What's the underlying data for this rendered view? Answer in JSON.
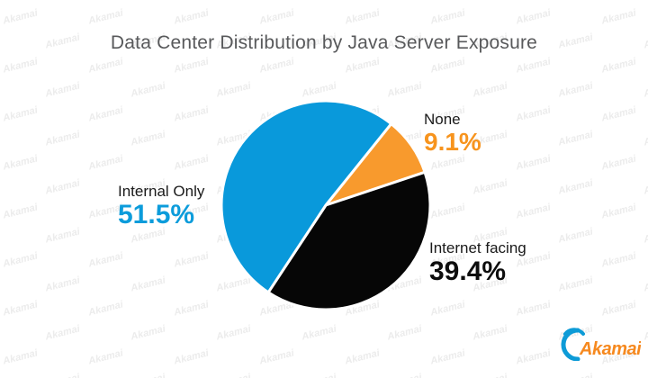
{
  "title": "Data Center Distribution by Java Server Exposure",
  "watermark_text": "Akamai",
  "logo": {
    "text": "Akamai",
    "orange": "#f6891f",
    "blue": "#0d9bd7"
  },
  "colors": {
    "background": "#ffffff",
    "title_text": "#58595b",
    "label_text": "#1a1a1a",
    "watermark": "#ececec"
  },
  "chart_data": {
    "type": "pie",
    "title": "Data Center Distribution by Java Server Exposure",
    "start_angle_deg": 38.8,
    "direction": "clockwise",
    "legend_position": "outside-callouts",
    "slices": [
      {
        "label": "None",
        "value": 9.1,
        "value_label": "9.1%",
        "color": "#f89a2d",
        "value_color": "#f7941e"
      },
      {
        "label": "Internet facing",
        "value": 39.4,
        "value_label": "39.4%",
        "color": "#060606",
        "value_color": "#0d0d0d"
      },
      {
        "label": "Internal Only",
        "value": 51.5,
        "value_label": "51.5%",
        "color": "#0999db",
        "value_color": "#0c9cdb"
      }
    ]
  }
}
